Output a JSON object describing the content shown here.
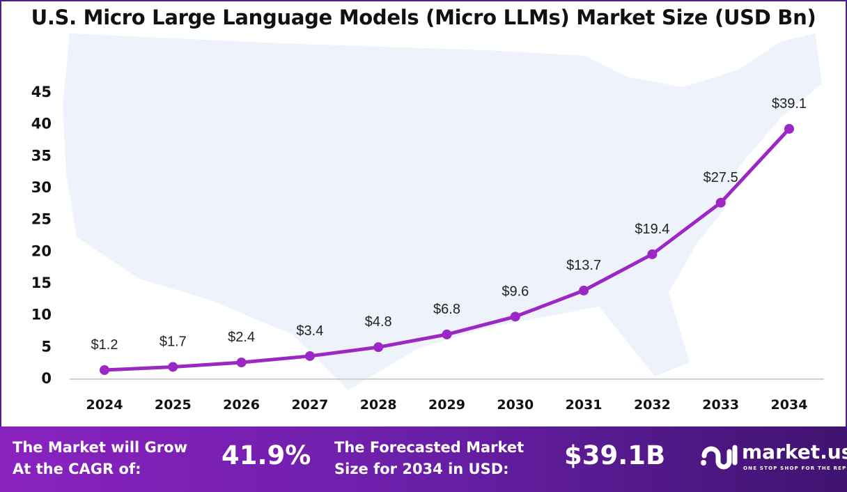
{
  "chart_data": {
    "type": "line",
    "title": "U.S. Micro Large Language Models (Micro LLMs) Market Size (USD Bn)",
    "categories": [
      "2024",
      "2025",
      "2026",
      "2027",
      "2028",
      "2029",
      "2030",
      "2031",
      "2032",
      "2033",
      "2034"
    ],
    "values": [
      1.2,
      1.7,
      2.4,
      3.4,
      4.8,
      6.8,
      9.6,
      13.7,
      19.4,
      27.5,
      39.1
    ],
    "data_labels": [
      "$1.2",
      "$1.7",
      "$2.4",
      "$3.4",
      "$4.8",
      "$6.8",
      "$9.6",
      "$13.7",
      "$19.4",
      "$27.5",
      "$39.1"
    ],
    "yticks": [
      0,
      5,
      10,
      15,
      20,
      25,
      30,
      35,
      40,
      45
    ],
    "ylim": [
      0,
      45
    ],
    "xlabel": "",
    "ylabel": "",
    "grid": false,
    "line_color": "#9b27c4",
    "background": "US map silhouette"
  },
  "footer": {
    "cagr_label_1": "The Market will Grow",
    "cagr_label_2": "At the CAGR of:",
    "cagr_value": "41.9%",
    "forecast_label_1": "The Forecasted Market",
    "forecast_label_2": "Size for 2034 in USD:",
    "forecast_value": "$39.1B",
    "brand": "market.us",
    "tagline": "ONE STOP SHOP FOR THE REPORTS"
  }
}
